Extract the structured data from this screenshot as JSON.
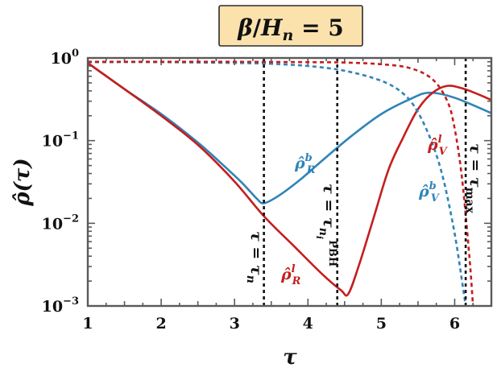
{
  "chart_data": {
    "type": "line",
    "title": "β/Hn = 5",
    "xlabel": "τ",
    "ylabel": "ρ̂(τ)",
    "xlim": [
      1,
      6.5
    ],
    "ylim": [
      0.001,
      1
    ],
    "yscale": "log",
    "grid": false,
    "legend": "none",
    "x_ticks": [
      1,
      2,
      3,
      4,
      5,
      6
    ],
    "y_ticks": [
      {
        "value": 1,
        "base": "10",
        "exp": "0"
      },
      {
        "value": 0.1,
        "base": "10",
        "exp": "−1"
      },
      {
        "value": 0.01,
        "base": "10",
        "exp": "−2"
      },
      {
        "value": 0.001,
        "base": "10",
        "exp": "−3"
      }
    ],
    "colors": {
      "blue": "#2f84b7",
      "red": "#c41e1e",
      "axis": "#5a5a5a",
      "title_bg": "#fbe2ad"
    },
    "series": [
      {
        "name": "ρ̂_R^b",
        "color": "#2f84b7",
        "dash": "solid",
        "x": [
          1.0,
          1.5,
          2.0,
          2.5,
          2.8,
          3.1,
          3.3,
          3.4,
          3.6,
          3.9,
          4.2,
          4.6,
          5.0,
          5.4,
          5.65,
          6.0,
          6.5
        ],
        "y": [
          0.87,
          0.42,
          0.21,
          0.095,
          0.055,
          0.031,
          0.02,
          0.0175,
          0.0215,
          0.034,
          0.058,
          0.115,
          0.21,
          0.32,
          0.38,
          0.33,
          0.215
        ]
      },
      {
        "name": "ρ̂_R^l",
        "color": "#c41e1e",
        "dash": "solid",
        "x": [
          1.0,
          1.5,
          2.0,
          2.5,
          3.0,
          3.4,
          3.8,
          4.2,
          4.45,
          4.55,
          4.7,
          4.9,
          5.1,
          5.3,
          5.5,
          5.7,
          5.9,
          6.1,
          6.3,
          6.5
        ],
        "y": [
          0.87,
          0.42,
          0.2,
          0.089,
          0.032,
          0.0122,
          0.0054,
          0.0024,
          0.00155,
          0.0014,
          0.0032,
          0.012,
          0.045,
          0.11,
          0.24,
          0.38,
          0.46,
          0.43,
          0.37,
          0.31
        ]
      },
      {
        "name": "ρ̂_V^b",
        "color": "#2f84b7",
        "dash": "dashed",
        "x": [
          1.0,
          2.0,
          3.0,
          3.5,
          4.0,
          4.5,
          5.0,
          5.3,
          5.5,
          5.7,
          5.85,
          6.0,
          6.1,
          6.15
        ],
        "y": [
          0.89,
          0.89,
          0.87,
          0.85,
          0.8,
          0.7,
          0.53,
          0.37,
          0.22,
          0.09,
          0.033,
          0.0075,
          0.002,
          0.001
        ]
      },
      {
        "name": "ρ̂_V^l",
        "color": "#c41e1e",
        "dash": "dashed",
        "x": [
          1.0,
          2.0,
          3.0,
          4.0,
          4.5,
          5.0,
          5.4,
          5.7,
          5.9,
          6.0,
          6.1,
          6.2,
          6.25
        ],
        "y": [
          0.9,
          0.9,
          0.9,
          0.89,
          0.88,
          0.84,
          0.75,
          0.55,
          0.3,
          0.14,
          0.035,
          0.004,
          0.001
        ]
      }
    ],
    "vlines": [
      {
        "x": 3.4,
        "label_main": "τ = τ",
        "label_sub": "n"
      },
      {
        "x": 4.4,
        "label_main": "τ = τ",
        "label_sub": "n",
        "label_sub2": "i",
        "label_sup": "PBH"
      },
      {
        "x": 6.15,
        "label_main": "τ = τ",
        "label_sub": "max"
      }
    ],
    "annotations": {
      "rho_R_b": {
        "base": "ρ̂",
        "sup": "b",
        "sub": "R"
      },
      "rho_R_l": {
        "base": "ρ̂",
        "sup": "l",
        "sub": "R"
      },
      "rho_V_b": {
        "base": "ρ̂",
        "sup": "b",
        "sub": "V"
      },
      "rho_V_l": {
        "base": "ρ̂",
        "sup": "l",
        "sub": "V"
      }
    }
  },
  "title_parts": {
    "beta": "β",
    "slash": "/",
    "H": "H",
    "n": "n",
    "eq": " = 5"
  }
}
